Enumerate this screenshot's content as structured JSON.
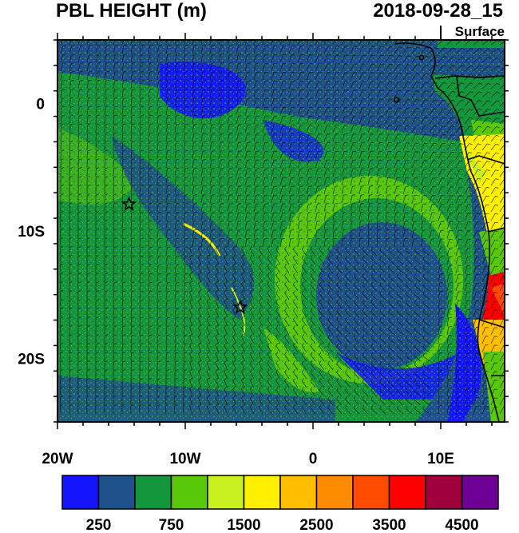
{
  "header": {
    "variable_title": "PBL HEIGHT (m)",
    "datetime": "2018-09-28_15",
    "level": "Surface"
  },
  "map": {
    "lon_range": [
      -20,
      15
    ],
    "lat_range": [
      -25,
      5
    ],
    "lon_ticks": [
      {
        "lon": -20,
        "label": "20W"
      },
      {
        "lon": -10,
        "label": "10W"
      },
      {
        "lon": 0,
        "label": "0"
      },
      {
        "lon": 10,
        "label": "10E"
      }
    ],
    "lat_ticks": [
      {
        "lat": 0,
        "label": "0"
      },
      {
        "lat": -10,
        "label": "10S"
      },
      {
        "lat": -20,
        "label": "20S"
      }
    ],
    "markers": [
      {
        "type": "star",
        "lon": -14.4,
        "lat": -7.9
      },
      {
        "type": "star",
        "lon": -5.7,
        "lat": -16.0
      }
    ]
  },
  "colorbar": {
    "colors": [
      "#1414ff",
      "#1e508c",
      "#14963c",
      "#5ac80a",
      "#c8f01e",
      "#fff000",
      "#ffbe00",
      "#ff8c00",
      "#ff4b00",
      "#ff0000",
      "#a0003c",
      "#6e0096"
    ],
    "labels": [
      "250",
      "750",
      "1500",
      "2500",
      "3500",
      "4500"
    ]
  }
}
